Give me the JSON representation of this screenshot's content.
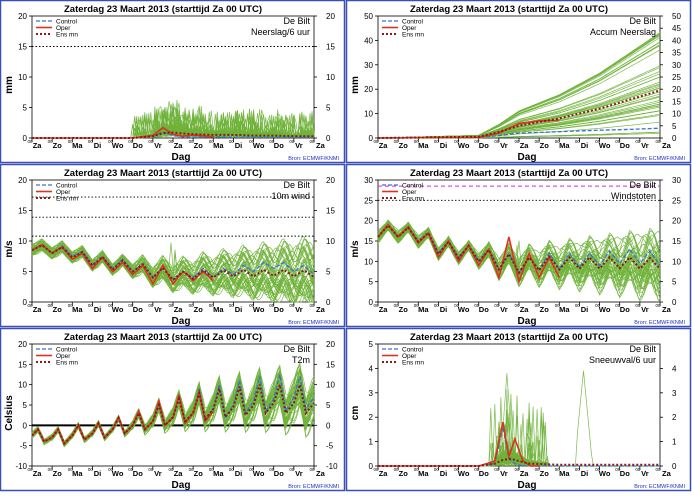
{
  "colors": {
    "control": "#3b6fd6",
    "oper": "#e0301e",
    "ensmean": "#8b1a1a",
    "members": "#6fb23a",
    "frame": "#3a4fb5",
    "hline": "#e020e0"
  },
  "legend_labels": {
    "control": "Control",
    "oper": "Oper",
    "ensmean": "Ens mn"
  },
  "day_labels": [
    "Za",
    "Zo",
    "Ma",
    "Di",
    "Wo",
    "Do",
    "Vr",
    "Za",
    "Zo",
    "Ma",
    "Di",
    "Wo",
    "Do",
    "Vr",
    "Za"
  ],
  "tick_hours": "00",
  "source": "Bron: ECMWF/KNMI",
  "chart_data": [
    {
      "type": "line",
      "title": "Zaterdag 23 Maart    2013   (starttijd  Za 00 UTC)",
      "station": "De Bilt",
      "variable": "Neerslag/6 uur",
      "xlabel": "Dag",
      "ylabel": "mm",
      "ylim": [
        0,
        20
      ],
      "yticks": [
        0,
        5,
        10,
        15,
        20
      ],
      "dotted_lines": [
        15
      ],
      "series_style": "members-spread",
      "series": [
        {
          "role": "control",
          "x": [
            0,
            5,
            6,
            6.5,
            7,
            7.5,
            8,
            9,
            10,
            11,
            12,
            13,
            14
          ],
          "values": [
            0,
            0,
            0.3,
            1.0,
            0.4,
            0.2,
            0.1,
            0.2,
            0.1,
            0.1,
            0.1,
            0.1,
            0.1
          ]
        },
        {
          "role": "oper",
          "x": [
            0,
            5,
            6,
            6.5,
            7,
            7.5,
            8,
            9
          ],
          "values": [
            0,
            0,
            0.4,
            1.7,
            0.6,
            0.3,
            0.5,
            0.2
          ]
        },
        {
          "role": "ensmean",
          "x": [
            0,
            5,
            6,
            6.5,
            7,
            8,
            9,
            10,
            11,
            12,
            13,
            14
          ],
          "values": [
            0,
            0,
            0.3,
            0.8,
            0.9,
            0.6,
            0.5,
            0.5,
            0.4,
            0.4,
            0.3,
            0.3
          ]
        }
      ]
    },
    {
      "type": "line",
      "title": "Zaterdag 23 Maart    2013   (starttijd  Za 00 UTC)",
      "station": "De Bilt",
      "variable": "Accum Neerslag",
      "xlabel": "Dag",
      "ylabel": "mm",
      "ylim": [
        0,
        50
      ],
      "yticks": [
        0,
        10,
        20,
        30,
        40,
        50
      ],
      "yticks_right": [
        0,
        5,
        10,
        15,
        20,
        25,
        30,
        35,
        40,
        45,
        50
      ],
      "series_style": "members-accum",
      "series": [
        {
          "role": "control",
          "x": [
            0,
            5,
            6,
            7,
            8,
            9,
            10,
            11,
            12,
            13,
            14
          ],
          "values": [
            0,
            0.2,
            1.0,
            2.0,
            2.3,
            2.6,
            2.9,
            3.2,
            3.4,
            3.7,
            4.0
          ]
        },
        {
          "role": "oper",
          "x": [
            0,
            5,
            6,
            7,
            8,
            9
          ],
          "values": [
            0,
            0.3,
            2.0,
            6.0,
            7.0,
            7.3
          ]
        },
        {
          "role": "ensmean",
          "x": [
            0,
            5,
            6,
            7,
            8,
            9,
            10,
            11,
            12,
            13,
            14
          ],
          "values": [
            0,
            0.5,
            2.5,
            5.0,
            6.5,
            8.0,
            10.0,
            12.0,
            14.5,
            17.0,
            19.5
          ]
        }
      ]
    },
    {
      "type": "line",
      "title": "Zaterdag 23 Maart    2013   (starttijd  Za 00 UTC)",
      "station": "De Bilt",
      "variable": "10m wind",
      "xlabel": "Dag",
      "ylabel": "m/s",
      "ylim": [
        0,
        20
      ],
      "yticks": [
        0,
        5,
        10,
        15,
        20
      ],
      "dotted_lines": [
        10.8,
        13.9,
        17.2
      ],
      "series_style": "members-diurnal",
      "series": [
        {
          "role": "control",
          "x": [
            0,
            0.5,
            1,
            1.5,
            2,
            2.5,
            3,
            3.5,
            4,
            4.5,
            5,
            5.5,
            6,
            6.5,
            7,
            7.5,
            8,
            8.5,
            9,
            9.5,
            10,
            10.5,
            11,
            11.5,
            12,
            12.5,
            13,
            13.5,
            14
          ],
          "values": [
            8.5,
            9.5,
            8.0,
            9.2,
            7.5,
            8.3,
            6.0,
            7.5,
            5.5,
            7.0,
            5.0,
            6.2,
            4.0,
            5.5,
            3.5,
            5.0,
            4.0,
            5.5,
            4.0,
            5.5,
            4.5,
            6.0,
            5.0,
            6.5,
            5.5,
            6.5,
            5.0,
            6.0,
            4.5
          ]
        },
        {
          "role": "oper",
          "x": [
            0,
            0.5,
            1,
            1.5,
            2,
            2.5,
            3,
            3.5,
            4,
            4.5,
            5,
            5.5,
            6,
            6.5,
            7,
            7.5,
            8,
            8.5,
            9
          ],
          "values": [
            8.5,
            9.4,
            8.0,
            9.0,
            7.0,
            8.0,
            5.5,
            7.3,
            5.0,
            6.5,
            4.5,
            6.0,
            3.0,
            6.0,
            3.0,
            5.0,
            3.5,
            5.0,
            3.5
          ]
        },
        {
          "role": "ensmean",
          "x": [
            0,
            0.5,
            1,
            1.5,
            2,
            2.5,
            3,
            3.5,
            4,
            4.5,
            5,
            5.5,
            6,
            6.5,
            7,
            7.5,
            8,
            8.5,
            9,
            9.5,
            10,
            10.5,
            11,
            11.5,
            12,
            12.5,
            13,
            13.5,
            14
          ],
          "values": [
            8.5,
            9.3,
            8.0,
            9.0,
            7.3,
            8.2,
            6.0,
            7.4,
            5.3,
            6.8,
            5.0,
            6.2,
            4.0,
            5.6,
            3.6,
            5.0,
            3.8,
            5.2,
            4.0,
            5.2,
            4.2,
            5.3,
            4.2,
            5.3,
            4.3,
            5.3,
            4.2,
            5.2,
            4.1
          ]
        }
      ]
    },
    {
      "type": "line",
      "title": "Zaterdag 23 Maart    2013   (starttijd  Za 00 UTC)",
      "station": "De Bilt",
      "variable": "Windstoten",
      "xlabel": "Dag",
      "ylabel": "m/s",
      "ylim": [
        0,
        30
      ],
      "yticks": [
        0,
        5,
        10,
        15,
        20,
        25,
        30
      ],
      "dotted_lines": [
        25
      ],
      "magenta_line": 28.5,
      "series_style": "members-diurnal",
      "series": [
        {
          "role": "control",
          "x": [
            0,
            0.5,
            1,
            1.5,
            2,
            2.5,
            3,
            3.5,
            4,
            4.5,
            5,
            5.5,
            6,
            6.5,
            7,
            7.5,
            8,
            8.5,
            9,
            9.5,
            10,
            10.5,
            11,
            11.5,
            12,
            12.5,
            13,
            13.5,
            14
          ],
          "values": [
            16,
            19,
            16,
            18.5,
            15,
            17,
            12,
            15,
            11,
            14,
            10,
            13,
            8,
            12,
            7,
            11,
            8,
            12,
            8,
            12,
            8.5,
            12,
            9,
            12.5,
            9.5,
            13,
            9.5,
            12.5,
            9
          ]
        },
        {
          "role": "oper",
          "x": [
            0,
            0.5,
            1,
            1.5,
            2,
            2.5,
            3,
            3.5,
            4,
            4.5,
            5,
            5.5,
            6,
            6.5,
            7,
            7.5,
            8,
            8.5,
            9
          ],
          "values": [
            16,
            19,
            16,
            18.5,
            14.5,
            17,
            11,
            15,
            10,
            14,
            9,
            13,
            6,
            16,
            5,
            12,
            6,
            11,
            6
          ]
        },
        {
          "role": "ensmean",
          "x": [
            0,
            0.5,
            1,
            1.5,
            2,
            2.5,
            3,
            3.5,
            4,
            4.5,
            5,
            5.5,
            6,
            6.5,
            7,
            7.5,
            8,
            8.5,
            9,
            9.5,
            10,
            10.5,
            11,
            11.5,
            12,
            12.5,
            13,
            13.5,
            14
          ],
          "values": [
            16,
            18.8,
            16,
            18.3,
            14.8,
            17,
            11.8,
            14.8,
            10.8,
            13.8,
            10,
            12.8,
            8,
            11.8,
            7.2,
            11,
            7.8,
            11.2,
            8,
            11,
            8.2,
            11,
            8.2,
            11,
            8.3,
            11,
            8.2,
            10.8,
            8.2
          ]
        }
      ]
    },
    {
      "type": "line",
      "title": "Zaterdag 23 Maart    2013   (starttijd  Za 00 UTC)",
      "station": "De Bilt",
      "variable": "T2m",
      "xlabel": "Dag",
      "ylabel": "Celsius",
      "ylim": [
        -10,
        20
      ],
      "yticks": [
        -10,
        -5,
        0,
        5,
        10,
        15,
        20
      ],
      "zero_line": true,
      "series_style": "members-diurnal-temp",
      "series": [
        {
          "role": "control",
          "x": [
            0,
            0.3,
            0.6,
            1,
            1.3,
            1.6,
            2,
            2.3,
            2.6,
            3,
            3.3,
            3.6,
            4,
            4.3,
            4.6,
            5,
            5.3,
            5.6,
            6,
            6.3,
            6.6,
            7,
            7.3,
            7.6,
            8,
            8.3,
            8.6,
            9,
            9.3,
            9.6,
            10,
            10.3,
            10.6,
            11,
            11.3,
            11.6,
            12,
            12.3,
            12.6,
            13,
            13.3,
            13.6,
            14
          ],
          "values": [
            -2.5,
            -1,
            -4,
            -3,
            -1,
            -4.5,
            -2.5,
            0,
            -3.5,
            -2,
            0.5,
            -3,
            -1,
            2,
            -2,
            0,
            3,
            -1,
            1,
            5,
            0,
            2,
            7,
            1,
            3,
            9,
            1.5,
            4,
            10,
            2,
            5,
            11,
            3,
            6,
            12,
            3.5,
            6.5,
            12.5,
            3.5,
            7,
            12,
            4,
            7
          ]
        },
        {
          "role": "oper",
          "x": [
            0,
            0.3,
            0.6,
            1,
            1.3,
            1.6,
            2,
            2.3,
            2.6,
            3,
            3.3,
            3.6,
            4,
            4.3,
            4.6,
            5,
            5.3,
            5.6,
            6,
            6.3,
            6.6,
            7,
            7.3,
            7.6,
            8,
            8.3,
            8.6,
            9
          ],
          "values": [
            -2.5,
            -1,
            -4,
            -3,
            -1,
            -4.5,
            -2.5,
            0,
            -3.5,
            -2,
            0.5,
            -3,
            -1,
            2,
            -2,
            0,
            3.5,
            -1,
            1,
            6,
            0,
            2,
            7.5,
            0.5,
            3,
            8,
            1,
            3.5
          ]
        },
        {
          "role": "ensmean",
          "x": [
            0,
            0.3,
            0.6,
            1,
            1.3,
            1.6,
            2,
            2.3,
            2.6,
            3,
            3.3,
            3.6,
            4,
            4.3,
            4.6,
            5,
            5.3,
            5.6,
            6,
            6.3,
            6.6,
            7,
            7.3,
            7.6,
            8,
            8.3,
            8.6,
            9,
            9.3,
            9.6,
            10,
            10.3,
            10.6,
            11,
            11.3,
            11.6,
            12,
            12.3,
            12.6,
            13,
            13.3,
            13.6,
            14
          ],
          "values": [
            -2.5,
            -1,
            -4,
            -3,
            -1,
            -4.5,
            -2.5,
            0,
            -3.5,
            -2,
            0.5,
            -3,
            -1,
            1.8,
            -2,
            0,
            3,
            -1,
            1,
            5,
            0,
            2,
            6.5,
            1,
            3,
            8,
            1.5,
            4,
            9,
            2,
            4.5,
            9.5,
            2.5,
            5,
            10,
            3,
            5.5,
            10,
            3,
            5.5,
            10,
            3,
            5.5
          ]
        }
      ]
    },
    {
      "type": "line",
      "title": "Zaterdag 23 Maart    2013   (starttijd  Za 00 UTC)",
      "station": "De Bilt",
      "variable": "Sneeuwval/6 uur",
      "xlabel": "Dag",
      "ylabel": "cm",
      "ylim": [
        0,
        5
      ],
      "yticks": [
        0,
        1,
        2,
        3,
        4,
        5
      ],
      "yticks_right": [
        0,
        1,
        2,
        3,
        4
      ],
      "series_style": "members-snow",
      "series": [
        {
          "role": "control",
          "x": [
            0,
            5,
            5.8,
            6.2,
            6.5,
            6.8,
            7.2,
            8,
            14
          ],
          "values": [
            0,
            0,
            0.1,
            1.6,
            0.3,
            0.1,
            0,
            0,
            0
          ]
        },
        {
          "role": "oper",
          "x": [
            0,
            5,
            5.8,
            6.2,
            6.5,
            6.8,
            7.2,
            7.6,
            8
          ],
          "values": [
            0,
            0,
            0.2,
            1.8,
            0.4,
            1.1,
            0.2,
            0,
            0
          ]
        },
        {
          "role": "ensmean",
          "x": [
            0,
            5,
            5.8,
            6.2,
            6.6,
            7,
            7.5,
            8,
            9,
            10,
            11,
            12,
            13,
            14
          ],
          "values": [
            0,
            0,
            0.1,
            0.25,
            0.3,
            0.2,
            0.1,
            0.08,
            0.05,
            0.05,
            0.05,
            0.05,
            0.05,
            0.05
          ]
        }
      ]
    }
  ]
}
